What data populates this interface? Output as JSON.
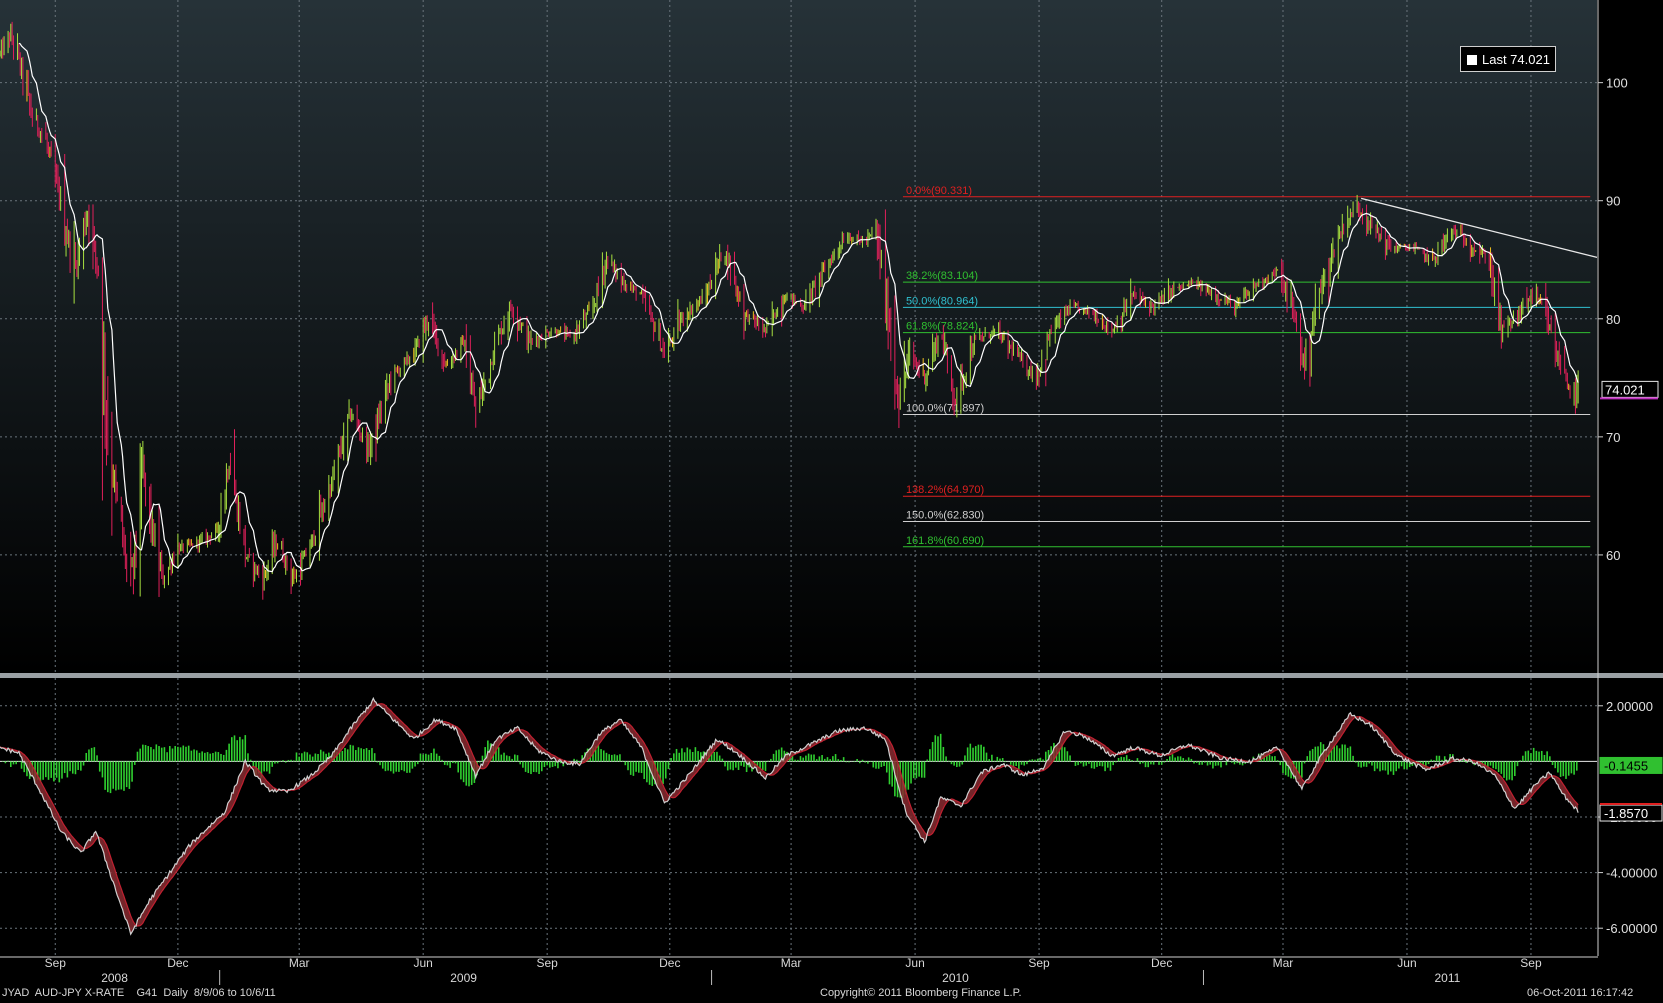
{
  "colors": {
    "background_top": "#263238",
    "background_bottom": "#000000",
    "grid": "#6a747c",
    "candle_up": "#a8e040",
    "candle_down": "#e0205a",
    "candle_neutral": "#f0c020",
    "moving_average": "#ffffff",
    "fib_red": "#e02020",
    "fib_green": "#30c030",
    "fib_cyan": "#30c0d0",
    "fib_white": "#d0d0d0",
    "macd_hist": "#30d030",
    "macd_line": "#d0d0d0",
    "signal_line": "#c02030",
    "label_magenta": "#c030c0"
  },
  "legend": {
    "label": "Last 74.021"
  },
  "footer": {
    "left": "JYAD  AUD-JPY X-RATE    G41  Daily  8/9/06 to 10/6/11",
    "center": "Copyright© 2011 Bloomberg Finance L.P.",
    "right": "06-Oct-2011 16:17:42"
  },
  "chart_data": [
    {
      "type": "candlestick",
      "title": "AUD-JPY X-RATE",
      "ylim": [
        50,
        107
      ],
      "y_ticks": [
        "60",
        "70",
        "80",
        "90",
        "100"
      ],
      "y_tick_values": [
        60,
        70,
        80,
        90,
        100
      ],
      "last_value_label": "74.021",
      "x_month_ticks": [
        "Sep",
        "Dec",
        "Mar",
        "Jun",
        "Sep",
        "Dec",
        "Mar",
        "Jun",
        "Sep",
        "Dec",
        "Mar",
        "Jun",
        "Sep"
      ],
      "x_month_dates": [
        "2008-09-01",
        "2008-12-01",
        "2009-03-01",
        "2009-06-01",
        "2009-09-01",
        "2009-12-01",
        "2010-03-01",
        "2010-06-01",
        "2010-09-01",
        "2010-12-01",
        "2011-03-01",
        "2011-06-01",
        "2011-09-01"
      ],
      "x_year_ticks": [
        "2008",
        "2009",
        "2010",
        "2011"
      ],
      "x_year_dates": [
        "2008-10-15",
        "2009-07-01",
        "2010-07-01",
        "2011-07-01"
      ],
      "x_range": [
        "2008-07-22",
        "2011-10-20"
      ],
      "price_path": [
        [
          "2008-07-22",
          102.5
        ],
        [
          "2008-07-30",
          104
        ],
        [
          "2008-08-07",
          101
        ],
        [
          "2008-08-15",
          97
        ],
        [
          "2008-08-25",
          95
        ],
        [
          "2008-09-05",
          90
        ],
        [
          "2008-09-15",
          84
        ],
        [
          "2008-09-25",
          89
        ],
        [
          "2008-10-03",
          84
        ],
        [
          "2008-10-10",
          70
        ],
        [
          "2008-10-20",
          62
        ],
        [
          "2008-10-27",
          57
        ],
        [
          "2008-11-05",
          67
        ],
        [
          "2008-11-12",
          62
        ],
        [
          "2008-11-20",
          58
        ],
        [
          "2008-12-01",
          60.5
        ],
        [
          "2008-12-15",
          61
        ],
        [
          "2008-12-30",
          62
        ],
        [
          "2009-01-08",
          68
        ],
        [
          "2009-01-20",
          60
        ],
        [
          "2009-02-02",
          58
        ],
        [
          "2009-02-12",
          61
        ],
        [
          "2009-02-25",
          58
        ],
        [
          "2009-03-10",
          61
        ],
        [
          "2009-03-25",
          66
        ],
        [
          "2009-04-08",
          72
        ],
        [
          "2009-04-22",
          69
        ],
        [
          "2009-05-08",
          75
        ],
        [
          "2009-05-25",
          77
        ],
        [
          "2009-06-05",
          80
        ],
        [
          "2009-06-18",
          76
        ],
        [
          "2009-07-01",
          78
        ],
        [
          "2009-07-10",
          72
        ],
        [
          "2009-07-25",
          78
        ],
        [
          "2009-08-05",
          81
        ],
        [
          "2009-08-20",
          78
        ],
        [
          "2009-09-05",
          79
        ],
        [
          "2009-09-20",
          78.5
        ],
        [
          "2009-10-05",
          81
        ],
        [
          "2009-10-15",
          85
        ],
        [
          "2009-10-28",
          83
        ],
        [
          "2009-11-10",
          82
        ],
        [
          "2009-11-27",
          77
        ],
        [
          "2009-12-10",
          80
        ],
        [
          "2009-12-28",
          82
        ],
        [
          "2010-01-10",
          86
        ],
        [
          "2010-01-25",
          80.5
        ],
        [
          "2010-02-10",
          79
        ],
        [
          "2010-02-25",
          82
        ],
        [
          "2010-03-10",
          81
        ],
        [
          "2010-03-25",
          84
        ],
        [
          "2010-04-10",
          87
        ],
        [
          "2010-04-25",
          86.5
        ],
        [
          "2010-05-03",
          87.5
        ],
        [
          "2010-05-10",
          82
        ],
        [
          "2010-05-20",
          73
        ],
        [
          "2010-05-28",
          77
        ],
        [
          "2010-06-08",
          75
        ],
        [
          "2010-06-20",
          79
        ],
        [
          "2010-07-01",
          73
        ],
        [
          "2010-07-15",
          78
        ],
        [
          "2010-07-30",
          79
        ],
        [
          "2010-08-15",
          77
        ],
        [
          "2010-08-30",
          75
        ],
        [
          "2010-09-10",
          79
        ],
        [
          "2010-09-25",
          81
        ],
        [
          "2010-10-10",
          80.5
        ],
        [
          "2010-10-25",
          79
        ],
        [
          "2010-11-10",
          82
        ],
        [
          "2010-11-25",
          81
        ],
        [
          "2010-12-10",
          82.5
        ],
        [
          "2010-12-25",
          83
        ],
        [
          "2011-01-10",
          82
        ],
        [
          "2011-01-25",
          81
        ],
        [
          "2011-02-10",
          83
        ],
        [
          "2011-02-25",
          84
        ],
        [
          "2011-03-10",
          80
        ],
        [
          "2011-03-17",
          76
        ],
        [
          "2011-03-25",
          81
        ],
        [
          "2011-04-05",
          85
        ],
        [
          "2011-04-15",
          88
        ],
        [
          "2011-04-25",
          89.5
        ],
        [
          "2011-05-05",
          88
        ],
        [
          "2011-05-20",
          86
        ],
        [
          "2011-06-05",
          86
        ],
        [
          "2011-06-20",
          85
        ],
        [
          "2011-07-05",
          87.5
        ],
        [
          "2011-07-20",
          86
        ],
        [
          "2011-08-01",
          85
        ],
        [
          "2011-08-10",
          79
        ],
        [
          "2011-08-20",
          80
        ],
        [
          "2011-09-01",
          82
        ],
        [
          "2011-09-10",
          81
        ],
        [
          "2011-09-20",
          77
        ],
        [
          "2011-10-04",
          73
        ],
        [
          "2011-10-06",
          74
        ]
      ],
      "fibonacci": [
        {
          "label": "0.0%(90.331)",
          "value": 90.331,
          "color": "#e02020"
        },
        {
          "label": "38.2%(83.104)",
          "value": 83.104,
          "color": "#30c030"
        },
        {
          "label": "50.0%(80.964)",
          "value": 80.964,
          "color": "#30c0d0"
        },
        {
          "label": "61.8%(78.824)",
          "value": 78.824,
          "color": "#30c030"
        },
        {
          "label": "100.0%(71.897)",
          "value": 71.897,
          "color": "#d0d0d0"
        },
        {
          "label": "138.2%(64.970)",
          "value": 64.97,
          "color": "#e02020"
        },
        {
          "label": "150.0%(62.830)",
          "value": 62.83,
          "color": "#d0d0d0"
        },
        {
          "label": "161.8%(60.690)",
          "value": 60.69,
          "color": "#30c030"
        }
      ],
      "fib_start": "2010-05-23",
      "fib_end": "2011-10-15",
      "trendline": [
        [
          "2011-04-28",
          90.2
        ],
        [
          "2011-10-20",
          85.2
        ]
      ]
    },
    {
      "type": "line",
      "ylim": [
        -7,
        3
      ],
      "y_ticks": [
        "-6.00000",
        "-4.00000",
        "-2.00000",
        "2.00000"
      ],
      "y_tick_values": [
        -6,
        -4,
        -2,
        2
      ],
      "value_labels": [
        "-0.1455",
        "-1.8570"
      ],
      "value_label_values": [
        -0.1455,
        -1.857
      ],
      "macd_path": [
        [
          "2008-07-22",
          0.5
        ],
        [
          "2008-08-05",
          0.3
        ],
        [
          "2008-08-20",
          -1
        ],
        [
          "2008-09-05",
          -2.5
        ],
        [
          "2008-09-20",
          -3.3
        ],
        [
          "2008-10-01",
          -2.5
        ],
        [
          "2008-10-15",
          -4.5
        ],
        [
          "2008-10-27",
          -6.2
        ],
        [
          "2008-11-10",
          -5
        ],
        [
          "2008-11-25",
          -4
        ],
        [
          "2008-12-10",
          -3
        ],
        [
          "2009-01-05",
          -1.8
        ],
        [
          "2009-01-20",
          0
        ],
        [
          "2009-02-05",
          -1
        ],
        [
          "2009-02-20",
          -1.1
        ],
        [
          "2009-03-10",
          -0.5
        ],
        [
          "2009-03-25",
          0.2
        ],
        [
          "2009-04-10",
          1.3
        ],
        [
          "2009-04-25",
          2.2
        ],
        [
          "2009-05-10",
          1.5
        ],
        [
          "2009-05-25",
          0.8
        ],
        [
          "2009-06-10",
          1.5
        ],
        [
          "2009-06-25",
          1.2
        ],
        [
          "2009-07-10",
          -0.5
        ],
        [
          "2009-07-25",
          0.8
        ],
        [
          "2009-08-10",
          1.2
        ],
        [
          "2009-08-25",
          0.4
        ],
        [
          "2009-09-10",
          0
        ],
        [
          "2009-09-25",
          -0.1
        ],
        [
          "2009-10-10",
          1
        ],
        [
          "2009-10-25",
          1.5
        ],
        [
          "2009-11-10",
          0.5
        ],
        [
          "2009-11-27",
          -1.5
        ],
        [
          "2009-12-15",
          -0.5
        ],
        [
          "2010-01-05",
          0.8
        ],
        [
          "2010-01-20",
          0.3
        ],
        [
          "2010-02-10",
          -0.6
        ],
        [
          "2010-02-25",
          0.2
        ],
        [
          "2010-03-15",
          0.6
        ],
        [
          "2010-04-05",
          1.1
        ],
        [
          "2010-04-25",
          1.2
        ],
        [
          "2010-05-10",
          0.8
        ],
        [
          "2010-05-25",
          -1.8
        ],
        [
          "2010-06-08",
          -2.9
        ],
        [
          "2010-06-20",
          -1.3
        ],
        [
          "2010-07-05",
          -1.6
        ],
        [
          "2010-07-20",
          -0.4
        ],
        [
          "2010-08-05",
          -0.1
        ],
        [
          "2010-08-20",
          -0.5
        ],
        [
          "2010-09-05",
          -0.2
        ],
        [
          "2010-09-20",
          1.1
        ],
        [
          "2010-10-05",
          0.9
        ],
        [
          "2010-10-25",
          0.2
        ],
        [
          "2010-11-10",
          0.5
        ],
        [
          "2010-11-30",
          0.2
        ],
        [
          "2010-12-20",
          0.6
        ],
        [
          "2011-01-15",
          0.1
        ],
        [
          "2011-02-05",
          0
        ],
        [
          "2011-02-25",
          0.5
        ],
        [
          "2011-03-15",
          -1
        ],
        [
          "2011-04-01",
          0.4
        ],
        [
          "2011-04-20",
          1.7
        ],
        [
          "2011-05-05",
          1.3
        ],
        [
          "2011-05-25",
          0.2
        ],
        [
          "2011-06-15",
          -0.3
        ],
        [
          "2011-07-05",
          0.1
        ],
        [
          "2011-07-20",
          0
        ],
        [
          "2011-08-05",
          -0.5
        ],
        [
          "2011-08-20",
          -1.7
        ],
        [
          "2011-09-05",
          -0.8
        ],
        [
          "2011-09-15",
          -0.4
        ],
        [
          "2011-09-25",
          -1.2
        ],
        [
          "2011-10-06",
          -1.8
        ]
      ],
      "signal_lag_days": 9
    }
  ]
}
